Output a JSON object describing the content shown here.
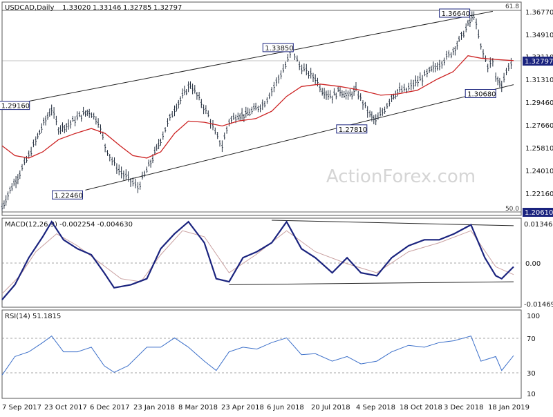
{
  "chart_data": [
    {
      "type": "line",
      "panel": "price",
      "symbol_header": "USDCAD,Daily",
      "ohlc_header": {
        "open": "1.33020",
        "high": "1.33146",
        "low": "1.32785",
        "close": "1.32797"
      },
      "watermark": "ActionForex.com",
      "price_axis_labels": [
        "1.36770",
        "1.34910",
        "1.31310",
        "1.29460",
        "1.27660",
        "1.25810",
        "1.24010",
        "1.22160"
      ],
      "current_price": {
        "label": "1.32797",
        "value": 1.32797
      },
      "price_axis_marker_1": {
        "label": "1.33110",
        "value": 1.3311
      },
      "low_marker": {
        "label": "1.20610",
        "value": 1.2061
      },
      "fib_levels": [
        {
          "label": "61.8",
          "value": 1.3677
        },
        {
          "label": "50.0",
          "value": 1.2061
        }
      ],
      "annotations": [
        {
          "label": "1.29160",
          "x": "11 Sep 2017",
          "value": 1.2916
        },
        {
          "label": "1.22460",
          "x": "30 Nov 2017",
          "value": 1.2246
        },
        {
          "label": "1.33850",
          "x": "25 Jun 2018",
          "value": 1.3385
        },
        {
          "label": "1.27810",
          "x": "10 Sep 2018",
          "value": 1.2781
        },
        {
          "label": "1.36640",
          "x": "27 Dec 2018",
          "value": 1.3664
        },
        {
          "label": "1.30680",
          "x": "18 Jan 2019",
          "value": 1.3068
        }
      ],
      "ylim": [
        1.2035,
        1.3765
      ],
      "x_tick_labels": [
        "7 Sep 2017",
        "23 Oct 2017",
        "6 Dec 2017",
        "23 Jan 2018",
        "8 Mar 2018",
        "23 Apr 2018",
        "6 Jun 2018",
        "20 Jul 2018",
        "4 Sep 2018",
        "18 Oct 2018",
        "3 Dec 2018",
        "18 Jan 2019"
      ],
      "price_path": [
        [
          "7 Sep 2017",
          1.2098
        ],
        [
          "15 Sep 2017",
          1.224
        ],
        [
          "25 Sep 2017",
          1.238
        ],
        [
          "4 Oct 2017",
          1.252
        ],
        [
          "11 Oct 2017",
          1.264
        ],
        [
          "19 Oct 2017",
          1.278
        ],
        [
          "27 Oct 2017",
          1.29
        ],
        [
          "3 Nov 2017",
          1.274
        ],
        [
          "13 Nov 2017",
          1.277
        ],
        [
          "24 Nov 2017",
          1.284
        ],
        [
          "4 Dec 2017",
          1.288
        ],
        [
          "13 Dec 2017",
          1.28
        ],
        [
          "20 Dec 2017",
          1.26
        ],
        [
          "27 Dec 2017",
          1.248
        ],
        [
          "3 Jan 2018",
          1.24
        ],
        [
          "10 Jan 2018",
          1.235
        ],
        [
          "17 Jan 2018",
          1.23
        ],
        [
          "22 Jan 2018",
          1.226
        ],
        [
          "31 Jan 2018",
          1.24
        ],
        [
          "6 Feb 2018",
          1.25
        ],
        [
          "14 Feb 2018",
          1.265
        ],
        [
          "21 Feb 2018",
          1.278
        ],
        [
          "28 Feb 2018",
          1.29
        ],
        [
          "8 Mar 2018",
          1.3
        ],
        [
          "16 Mar 2018",
          1.31
        ],
        [
          "27 Mar 2018",
          1.295
        ],
        [
          "3 Apr 2018",
          1.285
        ],
        [
          "10 Apr 2018",
          1.27
        ],
        [
          "17 Apr 2018",
          1.26
        ],
        [
          "24 Apr 2018",
          1.28
        ],
        [
          "3 May 2018",
          1.285
        ],
        [
          "11 May 2018",
          1.285
        ],
        [
          "21 May 2018",
          1.29
        ],
        [
          "30 May 2018",
          1.295
        ],
        [
          "6 Jun 2018",
          1.305
        ],
        [
          "13 Jun 2018",
          1.315
        ],
        [
          "20 Jun 2018",
          1.325
        ],
        [
          "27 Jun 2018",
          1.338
        ],
        [
          "4 Jul 2018",
          1.325
        ],
        [
          "11 Jul 2018",
          1.32
        ],
        [
          "20 Jul 2018",
          1.315
        ],
        [
          "27 Jul 2018",
          1.305
        ],
        [
          "6 Aug 2018",
          1.3
        ],
        [
          "14 Aug 2018",
          1.305
        ],
        [
          "22 Aug 2018",
          1.3
        ],
        [
          "30 Aug 2018",
          1.305
        ],
        [
          "6 Sep 2018",
          1.295
        ],
        [
          "13 Sep 2018",
          1.285
        ],
        [
          "19 Sep 2018",
          1.28
        ],
        [
          "28 Sep 2018",
          1.29
        ],
        [
          "5 Oct 2018",
          1.3
        ],
        [
          "13 Oct 2018",
          1.305
        ],
        [
          "20 Oct 2018",
          1.305
        ],
        [
          "27 Oct 2018",
          1.31
        ],
        [
          "5 Nov 2018",
          1.315
        ],
        [
          "12 Nov 2018",
          1.32
        ],
        [
          "20 Nov 2018",
          1.325
        ],
        [
          "27 Nov 2018",
          1.33
        ],
        [
          "4 Dec 2018",
          1.335
        ],
        [
          "12 Dec 2018",
          1.345
        ],
        [
          "19 Dec 2018",
          1.355
        ],
        [
          "27 Dec 2018",
          1.3664
        ],
        [
          "3 Jan 2019",
          1.34
        ],
        [
          "10 Jan 2019",
          1.325
        ],
        [
          "15 Jan 2019",
          1.328
        ],
        [
          "18 Jan 2019",
          1.315
        ],
        [
          "24 Jan 2019",
          1.31
        ],
        [
          "31 Jan 2019",
          1.325
        ],
        [
          "5 Feb 2019",
          1.328
        ]
      ],
      "moving_average": [
        [
          "7 Sep 2017",
          1.26
        ],
        [
          "20 Sep 2017",
          1.252
        ],
        [
          "4 Oct 2017",
          1.25
        ],
        [
          "18 Oct 2017",
          1.255
        ],
        [
          "3 Nov 2017",
          1.265
        ],
        [
          "20 Nov 2017",
          1.27
        ],
        [
          "6 Dec 2017",
          1.274
        ],
        [
          "20 Dec 2017",
          1.27
        ],
        [
          "4 Jan 2018",
          1.26
        ],
        [
          "17 Jan 2018",
          1.252
        ],
        [
          "31 Jan 2018",
          1.25
        ],
        [
          "14 Feb 2018",
          1.255
        ],
        [
          "28 Feb 2018",
          1.27
        ],
        [
          "14 Mar 2018",
          1.28
        ],
        [
          "30 Mar 2018",
          1.279
        ],
        [
          "17 Apr 2018",
          1.276
        ],
        [
          "3 May 2018",
          1.28
        ],
        [
          "21 May 2018",
          1.282
        ],
        [
          "6 Jun 2018",
          1.288
        ],
        [
          "21 Jun 2018",
          1.3
        ],
        [
          "6 Jul 2018",
          1.308
        ],
        [
          "25 Jul 2018",
          1.31
        ],
        [
          "14 Aug 2018",
          1.308
        ],
        [
          "4 Sep 2018",
          1.305
        ],
        [
          "24 Sep 2018",
          1.301
        ],
        [
          "11 Oct 2018",
          1.302
        ],
        [
          "31 Oct 2018",
          1.305
        ],
        [
          "20 Nov 2018",
          1.314
        ],
        [
          "6 Dec 2018",
          1.32
        ],
        [
          "21 Dec 2018",
          1.333
        ],
        [
          "3 Jan 2019",
          1.331
        ],
        [
          "18 Jan 2019",
          1.33
        ],
        [
          "5 Feb 2019",
          1.329
        ]
      ],
      "channel_upper": [
        [
          "11 Sep 2017",
          1.2925
        ],
        [
          "15 Jan 2019",
          1.369
        ]
      ],
      "channel_lower": [
        [
          "30 Nov 2017",
          1.224
        ],
        [
          "5 Feb 2019",
          1.3095
        ]
      ],
      "colors": {
        "price": "#1f2a3a",
        "moving_average": "#cc2222",
        "channel": "#222222",
        "label_border": "#1a237e",
        "label_fill": "#ffffff",
        "current_fill": "#1a237e"
      }
    },
    {
      "type": "line",
      "panel": "macd",
      "title": "MACD(12,26,9) -0.002254 -0.004630",
      "ylim": [
        -0.0155,
        0.0142
      ],
      "axis_labels": [
        "0.013461",
        "0.00",
        "-0.014694"
      ],
      "current_marker": {
        "label": "0.00",
        "value": 0.0
      },
      "series": [
        {
          "values": [
            [
              "7 Sep 2017",
              -0.013
            ],
            [
              "20 Sep 2017",
              -0.008
            ],
            [
              "4 Oct 2017",
              0.001
            ],
            [
              "18 Oct 2017",
              0.008
            ],
            [
              "27 Oct 2017",
              0.013
            ],
            [
              "8 Nov 2017",
              0.007
            ],
            [
              "22 Nov 2017",
              0.004
            ],
            [
              "6 Dec 2017",
              0.002
            ],
            [
              "19 Dec 2017",
              -0.004
            ],
            [
              "29 Dec 2017",
              -0.009
            ],
            [
              "15 Jan 2018",
              -0.008
            ],
            [
              "31 Jan 2018",
              -0.006
            ],
            [
              "14 Feb 2018",
              0.004
            ],
            [
              "28 Feb 2018",
              0.009
            ],
            [
              "14 Mar 2018",
              0.013
            ],
            [
              "30 Mar 2018",
              0.006
            ],
            [
              "11 Apr 2018",
              -0.006
            ],
            [
              "24 Apr 2018",
              -0.007
            ],
            [
              "8 May 2018",
              0.001
            ],
            [
              "22 May 2018",
              0.003
            ],
            [
              "6 Jun 2018",
              0.006
            ],
            [
              "21 Jun 2018",
              0.013
            ],
            [
              "6 Jul 2018",
              0.004
            ],
            [
              "20 Jul 2018",
              0.001
            ],
            [
              "6 Aug 2018",
              -0.004
            ],
            [
              "21 Aug 2018",
              0.001
            ],
            [
              "4 Sep 2018",
              -0.004
            ],
            [
              "20 Sep 2018",
              -0.005
            ],
            [
              "5 Oct 2018",
              0.001
            ],
            [
              "22 Oct 2018",
              0.005
            ],
            [
              "7 Nov 2018",
              0.007
            ],
            [
              "22 Nov 2018",
              0.007
            ],
            [
              "7 Dec 2018",
              0.009
            ],
            [
              "24 Dec 2018",
              0.012
            ],
            [
              "7 Jan 2019",
              0.001
            ],
            [
              "18 Jan 2019",
              -0.005
            ],
            [
              "24 Jan 2019",
              -0.006
            ],
            [
              "5 Feb 2019",
              -0.002
            ]
          ]
        },
        {
          "values": [
            [
              "7 Sep 2017",
              -0.011
            ],
            [
              "25 Sep 2017",
              -0.005
            ],
            [
              "11 Oct 2017",
              0.003
            ],
            [
              "1 Nov 2017",
              0.009
            ],
            [
              "22 Nov 2017",
              0.005
            ],
            [
              "12 Dec 2017",
              0.0
            ],
            [
              "5 Jan 2018",
              -0.006
            ],
            [
              "25 Jan 2018",
              -0.007
            ],
            [
              "14 Feb 2018",
              0.002
            ],
            [
              "8 Mar 2018",
              0.01
            ],
            [
              "30 Mar 2018",
              0.008
            ],
            [
              "24 Apr 2018",
              -0.004
            ],
            [
              "21 May 2018",
              0.002
            ],
            [
              "21 Jun 2018",
              0.01
            ],
            [
              "20 Jul 2018",
              0.003
            ],
            [
              "21 Aug 2018",
              -0.001
            ],
            [
              "20 Sep 2018",
              -0.004
            ],
            [
              "22 Oct 2018",
              0.003
            ],
            [
              "22 Nov 2018",
              0.006
            ],
            [
              "24 Dec 2018",
              0.01
            ],
            [
              "18 Jan 2019",
              -0.002
            ],
            [
              "5 Feb 2019",
              -0.0046
            ]
          ]
        }
      ],
      "upper_trendline": [
        [
          "6 Jun 2018",
          0.0135
        ],
        [
          "5 Feb 2019",
          0.0117
        ]
      ],
      "lower_trendline": [
        [
          "24 Apr 2018",
          -0.008
        ],
        [
          "5 Feb 2019",
          -0.007
        ]
      ]
    },
    {
      "type": "line",
      "panel": "rsi",
      "title": "RSI(14) 51.1815",
      "ylim": [
        5,
        100
      ],
      "axis_labels": [
        "100",
        "70",
        "30",
        "10"
      ],
      "levels": [
        70,
        30
      ],
      "series": [
        {
          "values": [
            [
              "7 Sep 2017",
              30
            ],
            [
              "20 Sep 2017",
              50
            ],
            [
              "4 Oct 2017",
              55
            ],
            [
              "18 Oct 2017",
              65
            ],
            [
              "27 Oct 2017",
              72
            ],
            [
              "8 Nov 2017",
              55
            ],
            [
              "22 Nov 2017",
              55
            ],
            [
              "6 Dec 2017",
              60
            ],
            [
              "19 Dec 2017",
              40
            ],
            [
              "29 Dec 2017",
              33
            ],
            [
              "12 Jan 2018",
              40
            ],
            [
              "31 Jan 2018",
              60
            ],
            [
              "14 Feb 2018",
              60
            ],
            [
              "28 Feb 2018",
              70
            ],
            [
              "14 Mar 2018",
              60
            ],
            [
              "30 Mar 2018",
              45
            ],
            [
              "11 Apr 2018",
              35
            ],
            [
              "24 Apr 2018",
              55
            ],
            [
              "8 May 2018",
              60
            ],
            [
              "22 May 2018",
              58
            ],
            [
              "6 Jun 2018",
              65
            ],
            [
              "21 Jun 2018",
              70
            ],
            [
              "6 Jul 2018",
              52
            ],
            [
              "20 Jul 2018",
              53
            ],
            [
              "6 Aug 2018",
              45
            ],
            [
              "21 Aug 2018",
              50
            ],
            [
              "4 Sep 2018",
              42
            ],
            [
              "20 Sep 2018",
              45
            ],
            [
              "5 Oct 2018",
              55
            ],
            [
              "22 Oct 2018",
              62
            ],
            [
              "7 Nov 2018",
              60
            ],
            [
              "22 Nov 2018",
              65
            ],
            [
              "7 Dec 2018",
              67
            ],
            [
              "24 Dec 2018",
              72
            ],
            [
              "3 Jan 2019",
              45
            ],
            [
              "18 Jan 2019",
              50
            ],
            [
              "24 Jan 2019",
              35
            ],
            [
              "5 Feb 2019",
              51
            ]
          ]
        }
      ]
    }
  ]
}
